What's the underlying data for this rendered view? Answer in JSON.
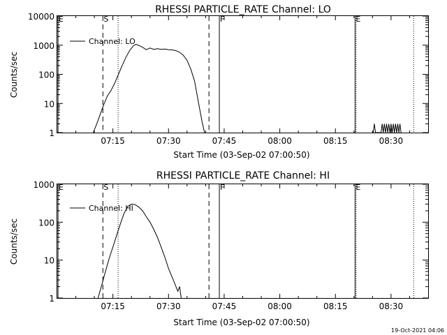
{
  "footer": {
    "timestamp": "19-Oct-2021 04:06"
  },
  "chart_data": [
    {
      "type": "line",
      "title": "RHESSI PARTICLE_RATE Channel: LO",
      "xlabel": "Start Time (03-Sep-02 07:00:50)",
      "ylabel": "Counts/sec",
      "yscale": "log",
      "ylim": [
        1,
        10000
      ],
      "xlim_minutes": [
        0,
        100
      ],
      "xtick_labels": [
        "07:15",
        "07:30",
        "07:45",
        "08:00",
        "08:15",
        "08:30"
      ],
      "xtick_minutes": [
        15,
        30,
        45,
        60,
        75,
        90
      ],
      "ytick_labels": [
        "1",
        "10",
        "100",
        "1000",
        "10000"
      ],
      "ytick_values": [
        1,
        10,
        100,
        1000,
        10000
      ],
      "legend": {
        "label": "Channel: LO",
        "placement": "top-left"
      },
      "markers": [
        {
          "label": "E",
          "minute": 0.2,
          "style": "solid"
        },
        {
          "label": "S",
          "minute": 12.3,
          "style": "dashed"
        },
        {
          "label": "",
          "minute": 16.4,
          "style": "dotted"
        },
        {
          "label": "",
          "minute": 40.9,
          "style": "dashed"
        },
        {
          "label": "F",
          "minute": 43.7,
          "style": "solid"
        },
        {
          "label": "E",
          "minute": 80.3,
          "style": "solid"
        },
        {
          "label": "",
          "minute": 80.6,
          "style": "dotted"
        },
        {
          "label": "",
          "minute": 96.1,
          "style": "dotted"
        }
      ],
      "series": [
        {
          "x": [
            9.7,
            10.5,
            11.5,
            12.5,
            13.5,
            14.5,
            15.5,
            16.5,
            17.5,
            18.5,
            19.5,
            20.5,
            21.2,
            22,
            23,
            24,
            25,
            26,
            27,
            28,
            29,
            30,
            31,
            32,
            33,
            34,
            35,
            36,
            37,
            38,
            39,
            39.7
          ],
          "y": [
            1,
            1.8,
            4,
            9,
            18,
            28,
            50,
            100,
            200,
            380,
            650,
            950,
            1080,
            980,
            850,
            700,
            800,
            720,
            760,
            720,
            740,
            700,
            690,
            650,
            570,
            450,
            300,
            150,
            60,
            12,
            2.5,
            1
          ]
        },
        {
          "x": [
            85.2,
            85.5,
            85.8,
            87.3,
            87.6,
            87.9,
            88.2,
            88.5,
            88.8,
            89.1,
            89.4,
            89.7,
            90.0,
            90.3,
            90.6,
            90.9,
            91.2,
            91.5,
            91.8,
            92.1,
            92.4,
            92.7
          ],
          "y": [
            1,
            2,
            1,
            1,
            2,
            1,
            2,
            1,
            2,
            1,
            2,
            1,
            2,
            1,
            2,
            1,
            2,
            1,
            2,
            1,
            2,
            1
          ]
        }
      ]
    },
    {
      "type": "line",
      "title": "RHESSI PARTICLE_RATE Channel: HI",
      "xlabel": "Start Time (03-Sep-02 07:00:50)",
      "ylabel": "Counts/sec",
      "yscale": "log",
      "ylim": [
        1,
        1000
      ],
      "xlim_minutes": [
        0,
        100
      ],
      "xtick_labels": [
        "07:15",
        "07:30",
        "07:45",
        "08:00",
        "08:15",
        "08:30"
      ],
      "xtick_minutes": [
        15,
        30,
        45,
        60,
        75,
        90
      ],
      "ytick_labels": [
        "1",
        "10",
        "100",
        "1000"
      ],
      "ytick_values": [
        1,
        10,
        100,
        1000
      ],
      "legend": {
        "label": "Channel: HI",
        "placement": "top-left"
      },
      "markers": [
        {
          "label": "E",
          "minute": 0.2,
          "style": "solid"
        },
        {
          "label": "S",
          "minute": 12.3,
          "style": "dashed"
        },
        {
          "label": "",
          "minute": 16.4,
          "style": "dotted"
        },
        {
          "label": "",
          "minute": 40.9,
          "style": "dashed"
        },
        {
          "label": "F",
          "minute": 43.7,
          "style": "solid"
        },
        {
          "label": "E",
          "minute": 80.3,
          "style": "solid"
        },
        {
          "label": "",
          "minute": 80.6,
          "style": "dotted"
        },
        {
          "label": "",
          "minute": 96.1,
          "style": "dotted"
        }
      ],
      "series": [
        {
          "x": [
            11,
            12,
            13,
            14,
            15,
            16,
            17,
            18,
            19,
            20,
            21,
            22,
            23,
            24,
            25,
            26,
            27,
            28,
            29,
            30,
            31,
            32,
            32.5,
            33,
            33.4
          ],
          "y": [
            1,
            2.2,
            5,
            11,
            22,
            45,
            90,
            170,
            260,
            300,
            290,
            250,
            200,
            140,
            100,
            65,
            40,
            22,
            12,
            6,
            3.5,
            2,
            1.5,
            2,
            1
          ]
        }
      ]
    }
  ]
}
